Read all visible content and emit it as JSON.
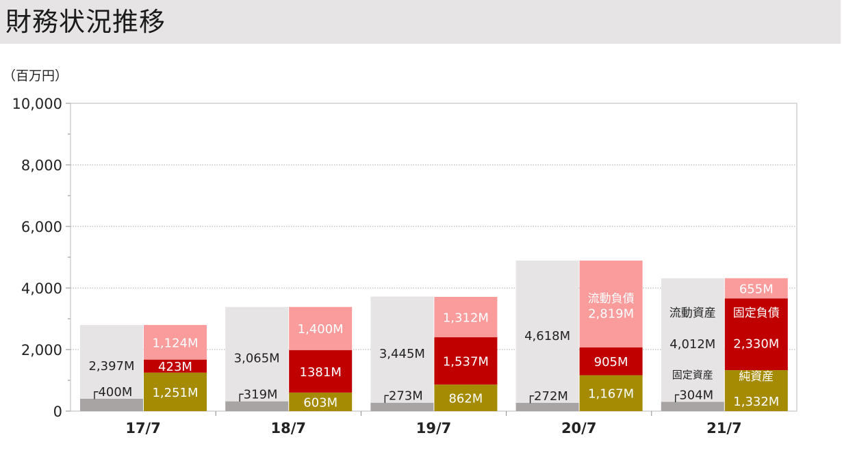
{
  "page": {
    "title": "財務状況推移",
    "unit": "（百万円）"
  },
  "chart_data": {
    "type": "bar",
    "title": "財務状況推移",
    "ylabel": "（百万円）",
    "ylim": [
      0,
      10000
    ],
    "yticks": [
      "0",
      "2,000",
      "4,000",
      "6,000",
      "8,000",
      "10,000"
    ],
    "grid": true,
    "categories": [
      "17/7",
      "18/7",
      "19/7",
      "20/7",
      "21/7"
    ],
    "asset_stack": {
      "series": [
        {
          "name": "固定資産",
          "values": [
            400,
            319,
            273,
            272,
            304
          ],
          "labels": [
            "┌400M",
            "┌319M",
            "┌273M",
            "┌272M",
            "┌304M"
          ],
          "color": "#a8a4a4"
        },
        {
          "name": "流動資産",
          "values": [
            2397,
            3065,
            3445,
            4618,
            4012
          ],
          "labels": [
            "2,397M",
            "3,065M",
            "3,445M",
            "4,618M",
            "4,012M"
          ],
          "color": "#e6e4e4"
        }
      ]
    },
    "liability_stack": {
      "series": [
        {
          "name": "純資産",
          "values": [
            1251,
            603,
            862,
            1167,
            1332
          ],
          "labels": [
            "1,251M",
            "603M",
            "862M",
            "1,167M",
            "1,332M"
          ],
          "color": "#a58b04"
        },
        {
          "name": "固定負債",
          "values": [
            423,
            1381,
            1537,
            905,
            2330
          ],
          "labels": [
            "423M",
            "1381M",
            "1,537M",
            "905M",
            "2,330M"
          ],
          "color": "#c00000"
        },
        {
          "name": "流動負債",
          "values": [
            1124,
            1400,
            1312,
            2819,
            655
          ],
          "labels": [
            "1,124M",
            "1,400M",
            "1,312M",
            "2,819M",
            "655M"
          ],
          "color": "#fb9c9c"
        }
      ]
    },
    "annotations": [
      "流動資産",
      "固定資産",
      "流動負債",
      "固定負債",
      "純資産"
    ]
  }
}
